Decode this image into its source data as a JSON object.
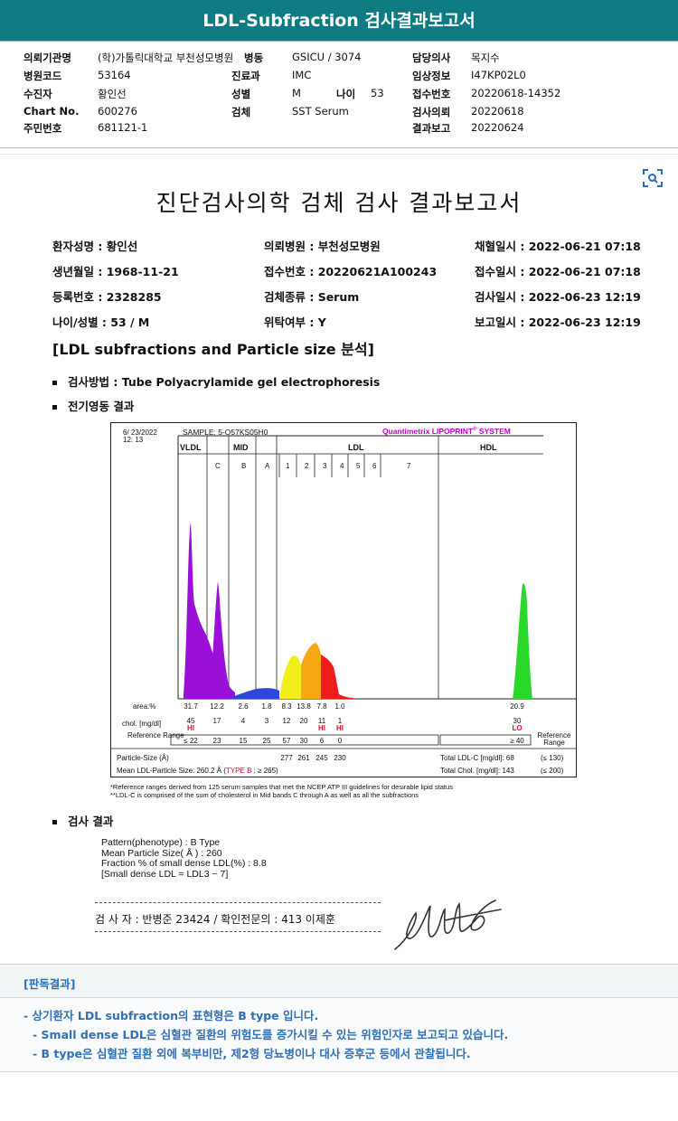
{
  "banner": {
    "title": "LDL-Subfraction 검사결과보고서"
  },
  "info": [
    {
      "label": "의뢰기관명",
      "value": "(학)가톨릭대학교 부천성모병원"
    },
    {
      "label": "병원코드",
      "value": "53164"
    },
    {
      "label": "수진자",
      "value": "황인선"
    },
    {
      "label": "Chart No.",
      "value": "600276"
    },
    {
      "label": "주민번호",
      "value": "681121-1"
    },
    {
      "label": "병동",
      "value": "GSICU / 3074"
    },
    {
      "label": "진료과",
      "value": "IMC"
    },
    {
      "label": "성별",
      "value": "M"
    },
    {
      "label": "나이",
      "value": "53"
    },
    {
      "label": "검체",
      "value": "SST Serum"
    },
    {
      "label": "담당의사",
      "value": "목지수"
    },
    {
      "label": "임상정보",
      "value": "I47KP02L0"
    },
    {
      "label": "접수번호",
      "value": "20220618-14352"
    },
    {
      "label": "검사의뢰",
      "value": "20220618"
    },
    {
      "label": "결과보고",
      "value": "20220624"
    }
  ],
  "report": {
    "title": "진단검사의학 검체 검사 결과보고서",
    "patient": [
      "환자성명 : 황인선",
      "의뢰병원 : 부천성모병원",
      "채혈일시 : 2022-06-21 07:18",
      "생년월일 : 1968-11-21",
      "접수번호 : 20220621A100243",
      "접수일시 : 2022-06-21 07:18",
      "등록번호 : 2328285",
      "검체종류 : Serum",
      "검사일시 : 2022-06-23 12:19",
      "나이/성별 : 53 / M",
      "위탁여부 : Y",
      "보고일시 : 2022-06-23 12:19"
    ],
    "section_title": "[LDL subfractions and Particle size 분석]",
    "method": "검사방법 : Tube Polyacrylamide gel electrophoresis",
    "electro_title": "전기영동 결과",
    "result_title": "검사 결과"
  },
  "chart_data": {
    "type": "area",
    "date": "6/ 23/2022",
    "time": "12: 13",
    "sample": "SAMPLE:  5-O57KS05H0",
    "brand": "Quantimetrix LIPOPRINT",
    "brand_mark": "®",
    "brand_tail": " SYSTEM",
    "groups": [
      "VLDL",
      "MID",
      "LDL",
      "HDL"
    ],
    "bands": [
      "C",
      "B",
      "A",
      "1",
      "2",
      "3",
      "4",
      "5",
      "6",
      "7"
    ],
    "columns": [
      "VLDL",
      "C",
      "B",
      "A",
      "1",
      "2",
      "3",
      "4",
      "5",
      "6-7",
      "HDL"
    ],
    "area_label": "area:%",
    "area": [
      "31.7",
      "12.2",
      "2.6",
      "1.8",
      "8.3",
      "13.8",
      "7.8",
      "1.0",
      "",
      "",
      "20.9"
    ],
    "chol_label": "chol. [mg/dl]",
    "chol": [
      "45",
      "17",
      "4",
      "3",
      "12",
      "20",
      "11",
      "1",
      "",
      "",
      "30"
    ],
    "flags": [
      "HI",
      "",
      "",
      "",
      "",
      "",
      "HI",
      "HI",
      "",
      "",
      "LO"
    ],
    "ref_label": "Reference Range",
    "ref": [
      "≤ 22",
      "23",
      "15",
      "25",
      "57",
      "30",
      "6",
      "0",
      "",
      "",
      "≥ 40"
    ],
    "ref_label_right": "Reference Range",
    "particle_label": "Particle-Size (Å)",
    "particle": [
      "",
      "",
      "",
      "",
      "277",
      "261",
      "245",
      "230",
      "",
      "",
      ""
    ],
    "total_ldl": "Total LDL-C [mg/dl]:  68",
    "total_ldl_ref": "(≤ 130)",
    "total_chol": "Total Chol. [mg/dl]:   143",
    "total_chol_ref": "(≤ 200)",
    "mean_size_label": "Mean LDL-Particle Size:  260.2 Å  (",
    "mean_size_type": "TYPE B",
    "mean_size_tail": " ; ≥ 265)",
    "colors": {
      "vldl": "#9b10d8",
      "mid": "#2d47d8",
      "ldl1": "#f2ee1a",
      "ldl2": "#f7a614",
      "ldl3": "#ee1c1c",
      "hdl": "#2ad82a",
      "flag": "#e0102a",
      "brand": "#c000c0"
    }
  },
  "footnotes": [
    "*Reference ranges derived from 125 serum samples that met the NCEP ATP III guidelines for desirable lipid status",
    "**LDL-C is comprised of the sum of cholesterol in Mid bands C through A as well as all the subfractions"
  ],
  "results": [
    "Pattern(phenotype) : B Type",
    "Mean Particle Size( Å ) : 260",
    "Fraction % of small dense LDL(%) : 8.8",
    "[Small dense LDL = LDL3 ~ 7]"
  ],
  "signature_line": "검 사 자 : 반병준  23424  /  확인전문의 : 413  이제훈",
  "interpretation": {
    "title": "[판독결과]",
    "lines": [
      "- 상기환자 LDL subfraction의 표현형은 B type 입니다.",
      "-   Small dense LDL은 심혈관 질환의 위험도를 증가시킬 수 있는 위험인자로 보고되고 있습니다.",
      "-   B type은 심혈관 질환 외에 복부비만, 제2형 당뇨병이나 대사 증후군 등에서 관찰됩니다."
    ]
  }
}
